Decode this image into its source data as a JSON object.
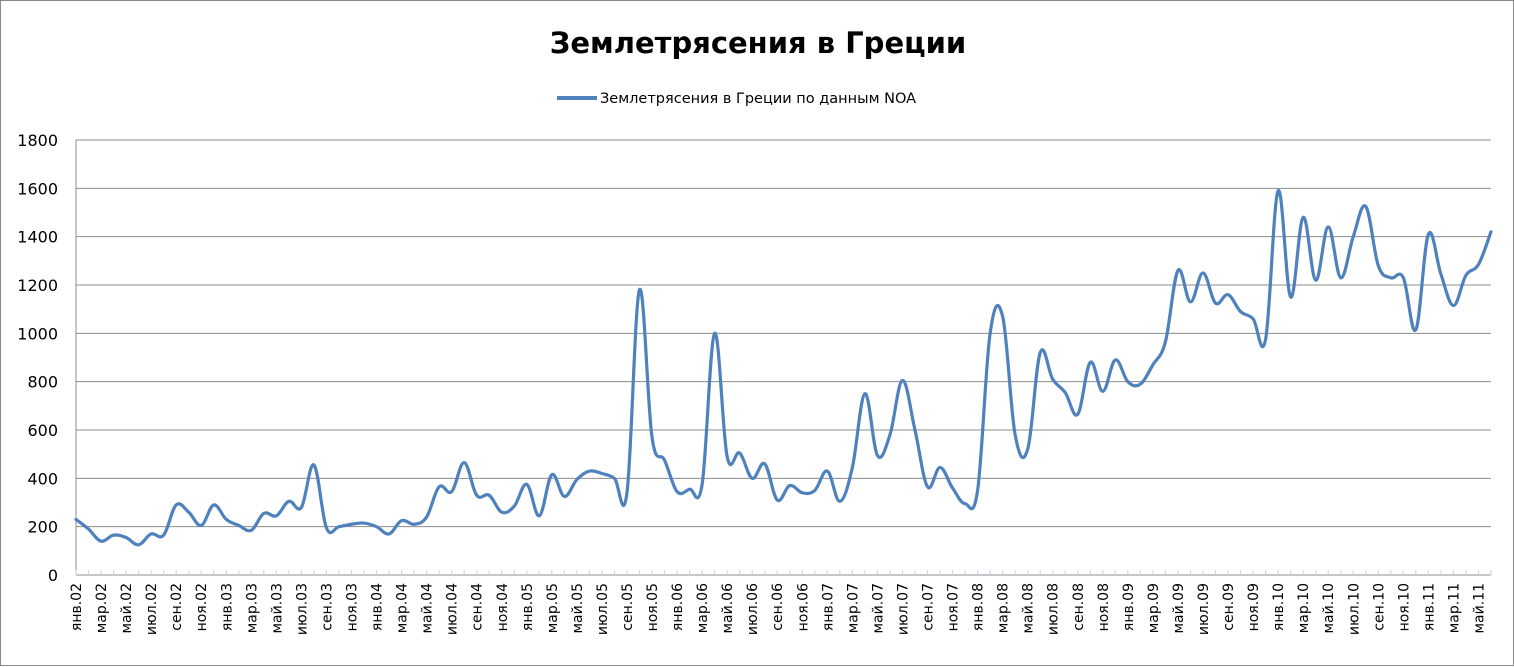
{
  "chart_data": {
    "type": "line",
    "title": "Землетрясения в Греции",
    "xlabel": "",
    "ylabel": "",
    "ylim": [
      0,
      1800
    ],
    "yticks": [
      0,
      200,
      400,
      600,
      800,
      1000,
      1200,
      1400,
      1600,
      1800
    ],
    "grid": true,
    "legend_position": "top",
    "series_color": "#4F81BD",
    "x_labels": [
      "янв.02",
      "мар.02",
      "май.02",
      "июл.02",
      "сен.02",
      "ноя.02",
      "янв.03",
      "мар.03",
      "май.03",
      "июл.03",
      "сен.03",
      "ноя.03",
      "янв.04",
      "мар.04",
      "май.04",
      "июл.04",
      "сен.04",
      "ноя.04",
      "янв.05",
      "мар.05",
      "май.05",
      "июл.05",
      "сен.05",
      "ноя.05",
      "янв.06",
      "мар.06",
      "май.06",
      "июл.06",
      "сен.06",
      "ноя.06",
      "янв.07",
      "мар.07",
      "май.07",
      "июл.07",
      "сен.07",
      "ноя.07",
      "янв.08",
      "мар.08",
      "май.08",
      "июл.08",
      "сен.08",
      "ноя.08",
      "янв.09",
      "мар.09",
      "май.09",
      "июл.09",
      "сен.09",
      "ноя.09",
      "янв.10",
      "мар.10",
      "май.10",
      "июл.10",
      "сен.10",
      "ноя.10",
      "янв.11",
      "мар.11",
      "май.11"
    ],
    "series": [
      {
        "name": "Землетрясения в Греции по данным NOA",
        "values": [
          230,
          190,
          140,
          165,
          155,
          125,
          170,
          165,
          290,
          260,
          205,
          290,
          230,
          205,
          185,
          255,
          245,
          305,
          280,
          455,
          195,
          200,
          210,
          215,
          200,
          170,
          225,
          210,
          240,
          365,
          345,
          465,
          330,
          330,
          260,
          285,
          375,
          245,
          415,
          325,
          395,
          430,
          420,
          400,
          340,
          1180,
          570,
          475,
          345,
          355,
          375,
          1000,
          490,
          505,
          400,
          460,
          310,
          370,
          340,
          350,
          430,
          305,
          445,
          750,
          495,
          580,
          805,
          600,
          365,
          445,
          360,
          295,
          350,
          1000,
          1070,
          580,
          520,
          920,
          810,
          755,
          665,
          880,
          760,
          890,
          800,
          790,
          870,
          965,
          1260,
          1130,
          1250,
          1125,
          1160,
          1090,
          1060,
          975,
          1590,
          1150,
          1480,
          1220,
          1440,
          1230,
          1400,
          1525,
          1280,
          1230,
          1230,
          1015,
          1410,
          1245,
          1115,
          1240,
          1285,
          1420
        ]
      }
    ]
  }
}
